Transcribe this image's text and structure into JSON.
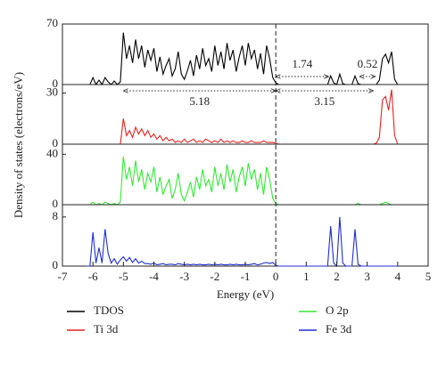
{
  "chart_data": {
    "type": "line",
    "xlabel": "Energy (eV)",
    "ylabel": "Density of states (electrons/eV)",
    "xlim": [
      -7,
      5
    ],
    "xticks": [
      -7,
      -6,
      -5,
      -4,
      -3,
      -2,
      -1,
      0,
      1,
      2,
      3,
      4,
      5
    ],
    "x": [
      -6.2,
      -6.1,
      -6,
      -5.9,
      -5.8,
      -5.7,
      -5.6,
      -5.5,
      -5.4,
      -5.3,
      -5.2,
      -5.1,
      -5,
      -4.9,
      -4.8,
      -4.7,
      -4.6,
      -4.5,
      -4.4,
      -4.3,
      -4.2,
      -4.1,
      -4,
      -3.9,
      -3.8,
      -3.7,
      -3.6,
      -3.5,
      -3.4,
      -3.3,
      -3.2,
      -3.1,
      -3,
      -2.9,
      -2.8,
      -2.7,
      -2.6,
      -2.5,
      -2.4,
      -2.3,
      -2.2,
      -2.1,
      -2,
      -1.9,
      -1.8,
      -1.7,
      -1.6,
      -1.5,
      -1.4,
      -1.3,
      -1.2,
      -1.1,
      -1,
      -0.9,
      -0.8,
      -0.7,
      -0.6,
      -0.5,
      -0.4,
      -0.3,
      -0.2,
      -0.1,
      0,
      0.1,
      0.2,
      0.3,
      0.4,
      0.5,
      0.6,
      0.7,
      0.8,
      0.9,
      1,
      1.1,
      1.2,
      1.3,
      1.4,
      1.5,
      1.6,
      1.7,
      1.8,
      1.9,
      2,
      2.1,
      2.2,
      2.3,
      2.4,
      2.5,
      2.6,
      2.7,
      2.8,
      2.9,
      3,
      3.1,
      3.2,
      3.3,
      3.4,
      3.5,
      3.6,
      3.7,
      3.8,
      3.9,
      4
    ],
    "series": [
      {
        "name": "TDOS",
        "color": "#000000",
        "ylim": [
          0,
          70
        ],
        "yticks": [
          0,
          70
        ],
        "values": [
          0,
          0,
          8,
          0,
          5,
          0,
          8,
          3,
          0,
          4,
          0,
          3,
          60,
          30,
          45,
          25,
          52,
          30,
          45,
          20,
          40,
          28,
          42,
          15,
          32,
          12,
          22,
          30,
          10,
          18,
          38,
          12,
          6,
          16,
          28,
          10,
          34,
          18,
          42,
          22,
          30,
          15,
          45,
          22,
          38,
          18,
          48,
          28,
          40,
          15,
          32,
          45,
          22,
          48,
          30,
          40,
          18,
          36,
          12,
          45,
          30,
          8,
          2,
          0,
          0,
          0,
          0,
          0,
          0,
          0,
          0,
          0,
          0,
          0,
          0,
          0,
          0,
          0,
          0,
          0,
          10,
          2,
          0,
          12,
          1,
          0,
          0,
          0,
          10,
          1,
          0,
          0,
          0,
          0,
          0,
          0,
          5,
          30,
          35,
          25,
          38,
          6,
          0
        ]
      },
      {
        "name": "Ti 3d",
        "color": "#e8211f",
        "ylim": [
          0,
          35
        ],
        "yticks": [
          0,
          30
        ],
        "values": [
          0,
          0,
          0,
          0,
          0,
          0,
          0,
          0,
          0,
          0,
          0,
          0,
          15,
          5,
          8,
          4,
          10,
          6,
          9,
          5,
          8,
          4,
          6,
          3,
          5,
          2,
          4,
          2,
          3,
          1,
          2,
          1,
          3,
          1,
          2,
          3,
          1,
          2,
          1,
          3,
          2,
          1,
          2,
          1,
          3,
          1,
          2,
          1,
          2,
          1,
          1,
          2,
          1,
          1,
          2,
          1,
          1,
          1,
          2,
          1,
          1,
          1,
          0.5,
          0,
          0,
          0,
          0,
          0,
          0,
          0,
          0,
          0,
          0,
          0,
          0,
          0,
          0,
          0,
          0,
          0,
          0,
          0,
          0,
          0,
          0,
          0,
          0,
          0,
          0,
          0,
          0,
          0,
          0,
          0,
          0,
          0.5,
          4,
          26,
          28,
          20,
          32,
          5,
          0
        ]
      },
      {
        "name": "O 2p",
        "color": "#33e833",
        "ylim": [
          0,
          48
        ],
        "yticks": [
          0,
          40
        ],
        "values": [
          0,
          0,
          2,
          0,
          1,
          0,
          2,
          1,
          0,
          1,
          0,
          2,
          38,
          20,
          30,
          15,
          35,
          18,
          28,
          12,
          25,
          18,
          30,
          10,
          22,
          8,
          15,
          20,
          5,
          12,
          25,
          8,
          3,
          10,
          18,
          6,
          22,
          12,
          28,
          15,
          20,
          10,
          30,
          15,
          25,
          12,
          32,
          18,
          28,
          10,
          22,
          30,
          15,
          33,
          20,
          28,
          12,
          25,
          8,
          30,
          20,
          5,
          1,
          0,
          0,
          0,
          0,
          0,
          0,
          0,
          0,
          0,
          0,
          0,
          0,
          0,
          0,
          0,
          0,
          0,
          0,
          0,
          0,
          0,
          0,
          0,
          0,
          0,
          0,
          1,
          0,
          0,
          0,
          0,
          0,
          0,
          0,
          1,
          2,
          1,
          0,
          0,
          0
        ]
      },
      {
        "name": "Fe 3d",
        "color": "#1f2ecf",
        "ylim": [
          0,
          10
        ],
        "yticks": [
          0,
          8
        ],
        "values": [
          0,
          0,
          5.5,
          0.5,
          3,
          0.5,
          6,
          2,
          0.5,
          1.2,
          0.3,
          1,
          1.5,
          0.8,
          1.4,
          0.6,
          1.2,
          0.5,
          0.8,
          0.4,
          0.4,
          0.3,
          0.5,
          0.2,
          0.3,
          0.4,
          0.2,
          0.3,
          0.3,
          0.2,
          0.4,
          0.3,
          0.2,
          0.3,
          0.2,
          0.3,
          0.2,
          0.3,
          0.2,
          0.2,
          0.3,
          0.2,
          0.3,
          0.2,
          0.3,
          0.2,
          0.2,
          0.3,
          0.2,
          0.3,
          0.2,
          0.2,
          0.3,
          0.2,
          0.3,
          0.4,
          0.2,
          0.3,
          0.5,
          0.6,
          0.4,
          0.6,
          0.1,
          0,
          0,
          0,
          0,
          0,
          0,
          0,
          0,
          0,
          0,
          0,
          0,
          0,
          0,
          0,
          0,
          0,
          6.5,
          0.5,
          0,
          8,
          0.5,
          0,
          0,
          0,
          6,
          0.3,
          0,
          0,
          0,
          0,
          0,
          0,
          0,
          0,
          0,
          0,
          0,
          0,
          0
        ]
      }
    ],
    "annotations": [
      {
        "text": "1.74",
        "x": [
          0,
          1.74
        ]
      },
      {
        "text": "0.52",
        "x": [
          2.75,
          3.27
        ]
      },
      {
        "text": "5.18",
        "x": [
          -5,
          0
        ]
      },
      {
        "text": "3.15",
        "x": [
          0,
          3.2
        ]
      }
    ]
  }
}
